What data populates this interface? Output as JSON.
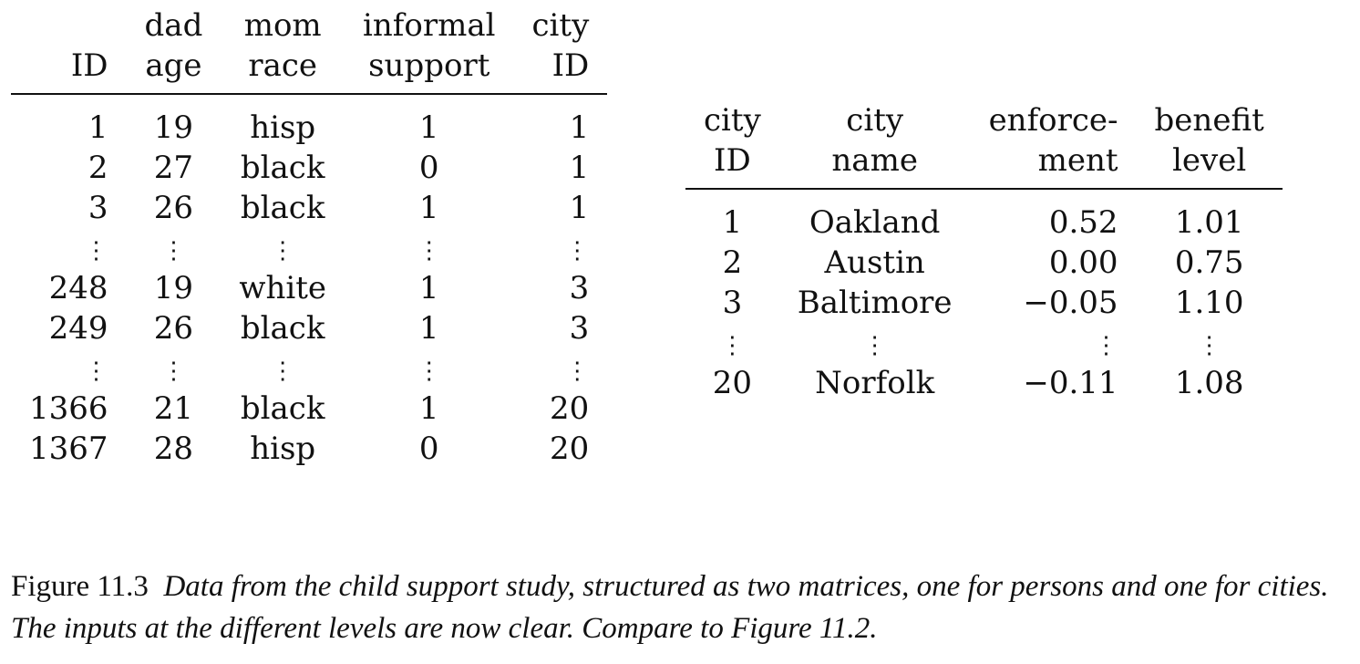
{
  "persons_table": {
    "headers": [
      [
        "",
        "ID"
      ],
      [
        "dad",
        "age"
      ],
      [
        "mom",
        "race"
      ],
      [
        "informal",
        "support"
      ],
      [
        "city",
        "ID"
      ]
    ],
    "rows": [
      [
        "1",
        "19",
        "hisp",
        "1",
        "1"
      ],
      [
        "2",
        "27",
        "black",
        "0",
        "1"
      ],
      [
        "3",
        "26",
        "black",
        "1",
        "1"
      ],
      [
        "⋮",
        "⋮",
        "⋮",
        "⋮",
        "⋮"
      ],
      [
        "248",
        "19",
        "white",
        "1",
        "3"
      ],
      [
        "249",
        "26",
        "black",
        "1",
        "3"
      ],
      [
        "⋮",
        "⋮",
        "⋮",
        "⋮",
        "⋮"
      ],
      [
        "1366",
        "21",
        "black",
        "1",
        "20"
      ],
      [
        "1367",
        "28",
        "hisp",
        "0",
        "20"
      ]
    ]
  },
  "cities_table": {
    "headers": [
      [
        "city",
        "ID"
      ],
      [
        "city",
        "name"
      ],
      [
        "enforce-",
        "ment"
      ],
      [
        "benefit",
        "level"
      ]
    ],
    "rows": [
      [
        "1",
        "Oakland",
        "0.52",
        "1.01"
      ],
      [
        "2",
        "Austin",
        "0.00",
        "0.75"
      ],
      [
        "3",
        "Baltimore",
        "−0.05",
        "1.10"
      ],
      [
        "⋮",
        "⋮",
        "⋮",
        "⋮"
      ],
      [
        "20",
        "Norfolk",
        "−0.11",
        "1.08"
      ]
    ]
  },
  "caption": {
    "label": "Figure 11.3",
    "text": "Data from the child support study, structured as two matrices, one for persons and one for cities. The inputs at the different levels are now clear. Compare to Figure 11.2."
  }
}
